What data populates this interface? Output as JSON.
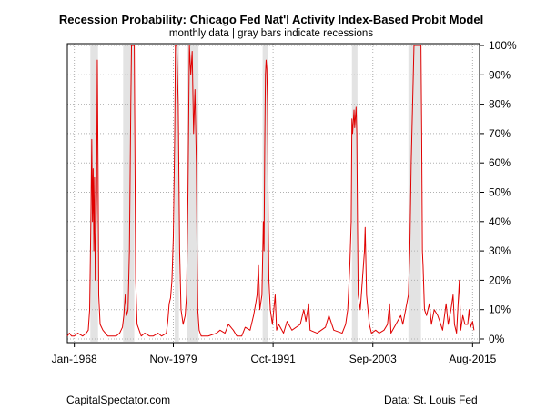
{
  "chart_data": {
    "type": "line",
    "title": "Recession Probability: Chicago Fed Nat'l Activity Index-Based Probit Model",
    "subtitle": "monthly data | gray bars indicate recessions",
    "xlabel": "",
    "ylabel": "",
    "x_ticks": [
      "Jan-1968",
      "Nov-1979",
      "Oct-1991",
      "Sep-2003",
      "Aug-2015"
    ],
    "y_ticks": [
      "0%",
      "10%",
      "20%",
      "30%",
      "40%",
      "50%",
      "60%",
      "70%",
      "80%",
      "90%",
      "100%"
    ],
    "xlim": [
      "1967-03",
      "2016-06"
    ],
    "ylim": [
      0,
      100
    ],
    "y_axis_position": "right",
    "grid": true,
    "line_color": "#e00000",
    "recession_band_color": "#e3e3e3",
    "recessions": [
      [
        "1969-12",
        "1970-11"
      ],
      [
        "1973-11",
        "1975-03"
      ],
      [
        "1980-01",
        "1980-07"
      ],
      [
        "1981-07",
        "1982-11"
      ],
      [
        "1990-07",
        "1991-03"
      ],
      [
        "2001-03",
        "2001-11"
      ],
      [
        "2007-12",
        "2009-06"
      ]
    ],
    "series": [
      {
        "name": "",
        "points": [
          [
            "1967-03",
            1
          ],
          [
            "1967-06",
            2
          ],
          [
            "1967-09",
            1
          ],
          [
            "1968-01",
            1
          ],
          [
            "1968-06",
            2
          ],
          [
            "1969-01",
            1
          ],
          [
            "1969-06",
            2
          ],
          [
            "1969-09",
            3
          ],
          [
            "1969-11",
            10
          ],
          [
            "1970-01",
            45
          ],
          [
            "1970-02",
            68
          ],
          [
            "1970-03",
            40
          ],
          [
            "1970-04",
            58
          ],
          [
            "1970-05",
            30
          ],
          [
            "1970-06",
            55
          ],
          [
            "1970-07",
            20
          ],
          [
            "1970-08",
            35
          ],
          [
            "1970-09",
            50
          ],
          [
            "1970-10",
            95
          ],
          [
            "1970-11",
            60
          ],
          [
            "1970-12",
            15
          ],
          [
            "1971-02",
            5
          ],
          [
            "1971-06",
            3
          ],
          [
            "1972-01",
            1
          ],
          [
            "1972-06",
            1
          ],
          [
            "1973-01",
            1
          ],
          [
            "1973-06",
            2
          ],
          [
            "1973-10",
            4
          ],
          [
            "1973-12",
            8
          ],
          [
            "1974-02",
            15
          ],
          [
            "1974-04",
            8
          ],
          [
            "1974-06",
            10
          ],
          [
            "1974-08",
            30
          ],
          [
            "1974-10",
            80
          ],
          [
            "1974-11",
            100
          ],
          [
            "1975-01",
            100
          ],
          [
            "1975-03",
            100
          ],
          [
            "1975-04",
            60
          ],
          [
            "1975-05",
            20
          ],
          [
            "1975-07",
            5
          ],
          [
            "1976-01",
            1
          ],
          [
            "1976-06",
            2
          ],
          [
            "1977-01",
            1
          ],
          [
            "1977-06",
            1
          ],
          [
            "1978-01",
            2
          ],
          [
            "1978-06",
            1
          ],
          [
            "1979-01",
            2
          ],
          [
            "1979-03",
            6
          ],
          [
            "1979-05",
            12
          ],
          [
            "1979-07",
            14
          ],
          [
            "1979-09",
            20
          ],
          [
            "1979-11",
            35
          ],
          [
            "1980-01",
            70
          ],
          [
            "1980-02",
            100
          ],
          [
            "1980-04",
            100
          ],
          [
            "1980-06",
            80
          ],
          [
            "1980-08",
            30
          ],
          [
            "1980-10",
            10
          ],
          [
            "1981-01",
            5
          ],
          [
            "1981-04",
            8
          ],
          [
            "1981-06",
            15
          ],
          [
            "1981-08",
            50
          ],
          [
            "1981-09",
            75
          ],
          [
            "1981-10",
            100
          ],
          [
            "1981-12",
            90
          ],
          [
            "1982-02",
            98
          ],
          [
            "1982-04",
            70
          ],
          [
            "1982-06",
            85
          ],
          [
            "1982-08",
            60
          ],
          [
            "1982-09",
            30
          ],
          [
            "1982-10",
            10
          ],
          [
            "1982-12",
            3
          ],
          [
            "1983-03",
            1
          ],
          [
            "1984-01",
            1
          ],
          [
            "1985-01",
            2
          ],
          [
            "1985-06",
            3
          ],
          [
            "1986-01",
            2
          ],
          [
            "1986-06",
            5
          ],
          [
            "1987-01",
            3
          ],
          [
            "1987-06",
            1
          ],
          [
            "1988-01",
            1
          ],
          [
            "1988-06",
            4
          ],
          [
            "1989-01",
            3
          ],
          [
            "1989-06",
            8
          ],
          [
            "1989-09",
            12
          ],
          [
            "1989-11",
            15
          ],
          [
            "1990-01",
            25
          ],
          [
            "1990-03",
            10
          ],
          [
            "1990-06",
            15
          ],
          [
            "1990-08",
            40
          ],
          [
            "1990-09",
            30
          ],
          [
            "1990-10",
            65
          ],
          [
            "1990-11",
            90
          ],
          [
            "1990-12",
            95
          ],
          [
            "1991-01",
            92
          ],
          [
            "1991-02",
            80
          ],
          [
            "1991-03",
            40
          ],
          [
            "1991-04",
            20
          ],
          [
            "1991-06",
            10
          ],
          [
            "1991-09",
            5
          ],
          [
            "1992-01",
            15
          ],
          [
            "1992-03",
            3
          ],
          [
            "1992-06",
            5
          ],
          [
            "1993-01",
            2
          ],
          [
            "1993-06",
            6
          ],
          [
            "1994-01",
            3
          ],
          [
            "1995-01",
            5
          ],
          [
            "1995-06",
            10
          ],
          [
            "1995-09",
            6
          ],
          [
            "1996-01",
            12
          ],
          [
            "1996-03",
            3
          ],
          [
            "1997-01",
            2
          ],
          [
            "1998-01",
            4
          ],
          [
            "1998-06",
            8
          ],
          [
            "1999-01",
            3
          ],
          [
            "2000-01",
            2
          ],
          [
            "2000-06",
            5
          ],
          [
            "2000-09",
            10
          ],
          [
            "2000-12",
            25
          ],
          [
            "2001-02",
            40
          ],
          [
            "2001-03",
            75
          ],
          [
            "2001-04",
            70
          ],
          [
            "2001-06",
            78
          ],
          [
            "2001-07",
            72
          ],
          [
            "2001-09",
            79
          ],
          [
            "2001-10",
            70
          ],
          [
            "2001-11",
            40
          ],
          [
            "2001-12",
            15
          ],
          [
            "2002-03",
            10
          ],
          [
            "2002-06",
            20
          ],
          [
            "2002-09",
            30
          ],
          [
            "2002-10",
            38
          ],
          [
            "2002-12",
            15
          ],
          [
            "2003-02",
            10
          ],
          [
            "2003-04",
            5
          ],
          [
            "2003-07",
            2
          ],
          [
            "2004-01",
            3
          ],
          [
            "2004-06",
            2
          ],
          [
            "2005-01",
            3
          ],
          [
            "2005-06",
            5
          ],
          [
            "2005-09",
            12
          ],
          [
            "2005-11",
            2
          ],
          [
            "2006-06",
            5
          ],
          [
            "2007-01",
            8
          ],
          [
            "2007-04",
            5
          ],
          [
            "2007-08",
            10
          ],
          [
            "2007-12",
            15
          ],
          [
            "2008-02",
            30
          ],
          [
            "2008-04",
            60
          ],
          [
            "2008-06",
            80
          ],
          [
            "2008-08",
            100
          ],
          [
            "2009-02",
            100
          ],
          [
            "2009-06",
            100
          ],
          [
            "2009-07",
            70
          ],
          [
            "2009-08",
            30
          ],
          [
            "2009-09",
            25
          ],
          [
            "2009-11",
            10
          ],
          [
            "2010-02",
            8
          ],
          [
            "2010-06",
            12
          ],
          [
            "2010-09",
            5
          ],
          [
            "2011-01",
            10
          ],
          [
            "2011-06",
            8
          ],
          [
            "2011-09",
            6
          ],
          [
            "2012-01",
            3
          ],
          [
            "2012-06",
            12
          ],
          [
            "2012-09",
            5
          ],
          [
            "2013-01",
            10
          ],
          [
            "2013-04",
            15
          ],
          [
            "2013-06",
            5
          ],
          [
            "2013-09",
            2
          ],
          [
            "2014-01",
            20
          ],
          [
            "2014-03",
            3
          ],
          [
            "2014-06",
            8
          ],
          [
            "2014-09",
            5
          ],
          [
            "2015-01",
            5
          ],
          [
            "2015-03",
            10
          ],
          [
            "2015-05",
            4
          ],
          [
            "2015-08",
            6
          ],
          [
            "2015-10",
            3
          ]
        ]
      }
    ]
  },
  "footer": {
    "left": "CapitalSpectator.com",
    "right": "Data: St. Louis Fed"
  }
}
